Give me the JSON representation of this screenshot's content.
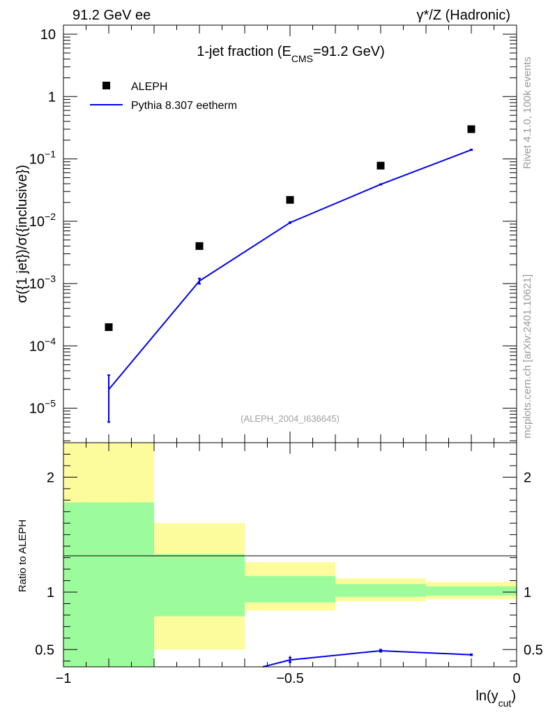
{
  "header": {
    "left": "91.2 GeV ee",
    "right": "γ*/Z (Hadronic)"
  },
  "side_text": {
    "upper": "Rivet 4.1.0,  100k events",
    "lower": "mcplots.cern.ch [arXiv:2401.10621]"
  },
  "colors": {
    "mc_line": "#0000ee",
    "band_inner": "#9cfc9c",
    "band_outer": "#fcfc9c",
    "data_marker": "#000000"
  },
  "chart_data": [
    {
      "type": "scatter",
      "title": "1-jet fraction (E_CMS=91.2 GeV)",
      "title_parts": {
        "pre": "1-jet fraction (E",
        "sub": "CMS",
        "post": "=91.2 GeV)"
      },
      "watermark": "(ALEPH_2004_I636645)",
      "ylabel": "σ({1 jet})/σ({inclusive})",
      "yscale": "log",
      "ylim": [
        2.8e-06,
        14
      ],
      "xlim": [
        -1,
        0
      ],
      "ytick_labels": [
        {
          "value": 10,
          "base": "10",
          "exp": ""
        },
        {
          "value": 1,
          "base": "1",
          "exp": ""
        },
        {
          "value": 0.1,
          "base": "10",
          "exp": "−1"
        },
        {
          "value": 0.01,
          "base": "10",
          "exp": "−2"
        },
        {
          "value": 0.001,
          "base": "10",
          "exp": "−3"
        },
        {
          "value": 0.0001,
          "base": "10",
          "exp": "−4"
        },
        {
          "value": 1e-05,
          "base": "10",
          "exp": "−5"
        }
      ],
      "legend": [
        {
          "label": "ALEPH",
          "kind": "marker"
        },
        {
          "label": "Pythia 8.307 eetherm",
          "kind": "line"
        }
      ],
      "series": [
        {
          "name": "ALEPH",
          "kind": "points",
          "x": [
            -0.9,
            -0.7,
            -0.5,
            -0.3,
            -0.1
          ],
          "y": [
            0.0002,
            0.004,
            0.022,
            0.078,
            0.3
          ]
        },
        {
          "name": "Pythia 8.307 eetherm",
          "kind": "line",
          "x": [
            -0.9,
            -0.7,
            -0.5,
            -0.3,
            -0.1
          ],
          "y": [
            2e-05,
            0.0011,
            0.0095,
            0.039,
            0.14
          ],
          "err_low": [
            6e-06,
            0.00099,
            0.0093,
            0.0385,
            0.138
          ],
          "err_high": [
            3.4e-05,
            0.00121,
            0.0097,
            0.0395,
            0.142
          ]
        }
      ]
    },
    {
      "type": "line",
      "ylabel": "Ratio to ALEPH",
      "xlabel": "ln(y_cut)",
      "xlabel_parts": {
        "pre": "ln(y",
        "sub": "cut",
        "post": ")"
      },
      "xlim": [
        -1,
        0
      ],
      "ylim": [
        0.35,
        2.3
      ],
      "x_tick_labels": [
        "−1",
        "−0.5",
        "0"
      ],
      "x_tick_values": [
        -1,
        -0.5,
        0
      ],
      "y_tick_labels": [
        "0.5",
        "1",
        "2"
      ],
      "y_tick_values": [
        0.5,
        1,
        2
      ],
      "bands": [
        {
          "x_low": -1.0,
          "x_high": -0.8,
          "outer": [
            0.35,
            2.3
          ],
          "inner": [
            0.35,
            1.78
          ]
        },
        {
          "x_low": -0.8,
          "x_high": -0.6,
          "outer": [
            0.5,
            1.6
          ],
          "inner": [
            0.79,
            1.33
          ]
        },
        {
          "x_low": -0.6,
          "x_high": -0.4,
          "outer": [
            0.84,
            1.26
          ],
          "inner": [
            0.91,
            1.14
          ]
        },
        {
          "x_low": -0.4,
          "x_high": -0.2,
          "outer": [
            0.92,
            1.12
          ],
          "inner": [
            0.96,
            1.07
          ]
        },
        {
          "x_low": -0.2,
          "x_high": 0.0,
          "outer": [
            0.94,
            1.09
          ],
          "inner": [
            0.97,
            1.05
          ]
        }
      ],
      "series": [
        {
          "name": "Pythia 8.307 eetherm",
          "x": [
            -0.5,
            -0.3,
            -0.1
          ],
          "y": [
            0.41,
            0.49,
            0.455
          ],
          "err_low": [
            0.39,
            0.48,
            0.45
          ],
          "err_high": [
            0.43,
            0.5,
            0.46
          ]
        }
      ],
      "lead_in": {
        "from_x": -0.56,
        "from_y": 0.35
      }
    }
  ]
}
